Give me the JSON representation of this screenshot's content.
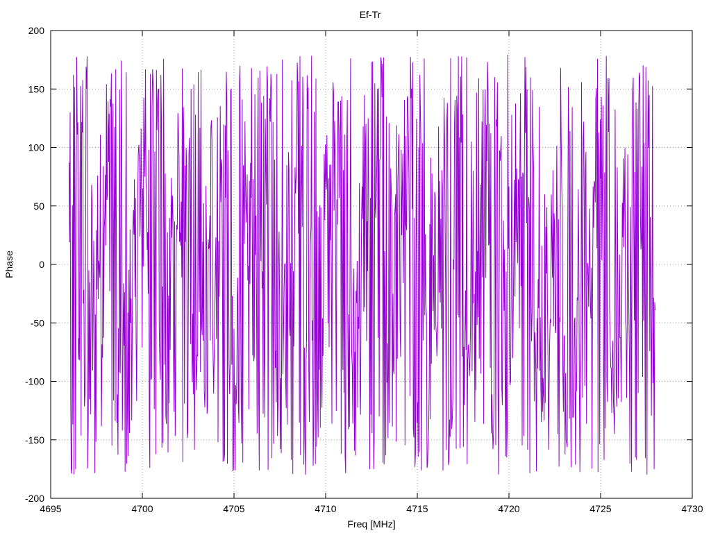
{
  "chart_data": {
    "type": "line",
    "title": "Ef-Tr",
    "xlabel": "Freq [MHz]",
    "ylabel": "Phase",
    "xlim": [
      4695,
      4730
    ],
    "ylim": [
      -200,
      200
    ],
    "xticks": [
      4695,
      4700,
      4705,
      4710,
      4715,
      4720,
      4725,
      4730
    ],
    "yticks": [
      -200,
      -150,
      -100,
      -50,
      0,
      50,
      100,
      150,
      200
    ],
    "xtick_labels": [
      "4695",
      "4700",
      "4705",
      "4710",
      "4715",
      "4720",
      "4725",
      "4730"
    ],
    "ytick_labels": [
      "-200",
      "-150",
      "-100",
      "-50",
      "0",
      "50",
      "100",
      "150",
      "200"
    ],
    "grid": true,
    "legend": "none",
    "series": [
      {
        "color": "#9400d3",
        "x_start": 4696.0,
        "x_end": 4728.0,
        "x_step": 0.03,
        "wrap_period_mhz": 2.05,
        "envelope_note_x": [
          4696.0,
          4728.0
        ]
      }
    ]
  },
  "colors": {
    "line": "#9400d3",
    "grid": "#a0a0a0",
    "axis": "#000000",
    "background": "#ffffff"
  }
}
